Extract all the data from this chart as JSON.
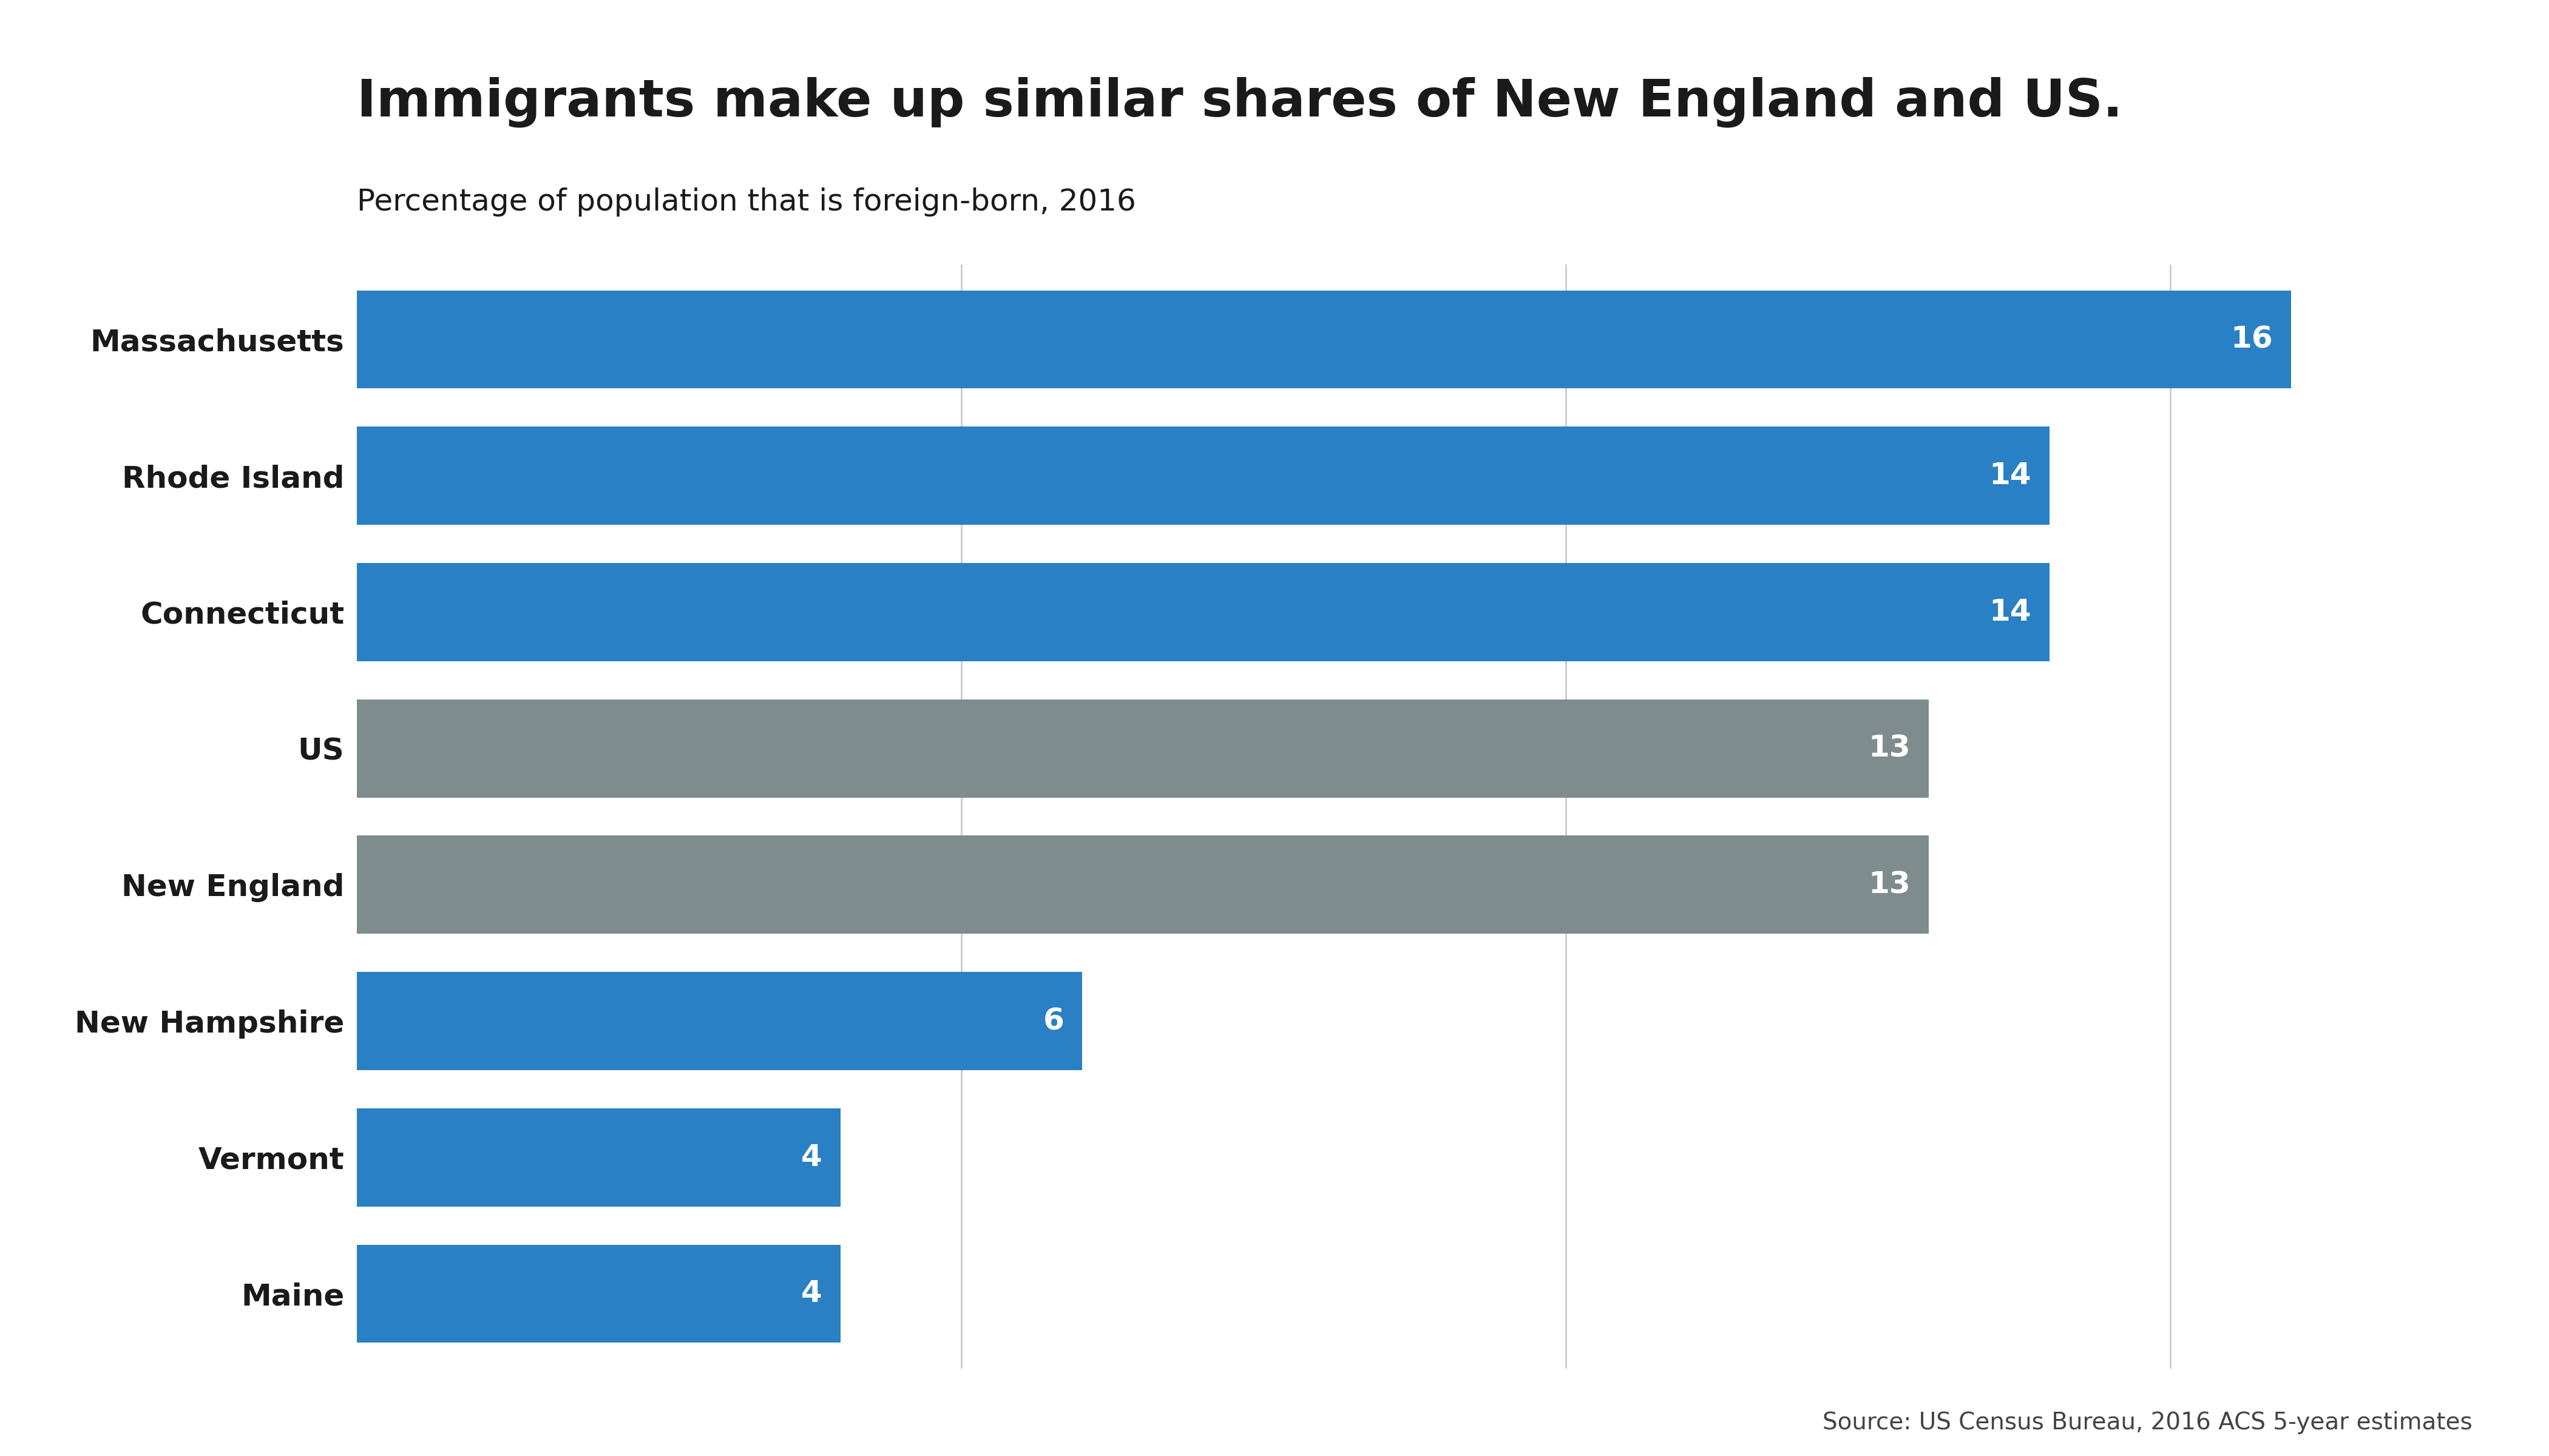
{
  "title": "Immigrants make up similar shares of New England and US.",
  "subtitle": "Percentage of population that is foreign-born, 2016",
  "source": "Source: US Census Bureau, 2016 ACS 5-year estimates",
  "categories": [
    "Massachusetts",
    "Rhode Island",
    "Connecticut",
    "US",
    "New England",
    "New Hampshire",
    "Vermont",
    "Maine"
  ],
  "values": [
    16,
    14,
    14,
    13,
    13,
    6,
    4,
    4
  ],
  "bar_colors": [
    "#2980c4",
    "#2980c4",
    "#2980c4",
    "#7f8c8d",
    "#7f8c8d",
    "#2980c4",
    "#2980c4",
    "#2980c4"
  ],
  "background_color": "#ffffff",
  "title_fontsize": 62,
  "subtitle_fontsize": 36,
  "label_fontsize": 36,
  "value_fontsize": 36,
  "source_fontsize": 28,
  "xlim": [
    0,
    17.5
  ],
  "bar_height": 0.72,
  "grid_color": "#cccccc",
  "text_color": "#1a1a1a",
  "value_text_color": "#ffffff",
  "grid_ticks": [
    5,
    10,
    15
  ]
}
